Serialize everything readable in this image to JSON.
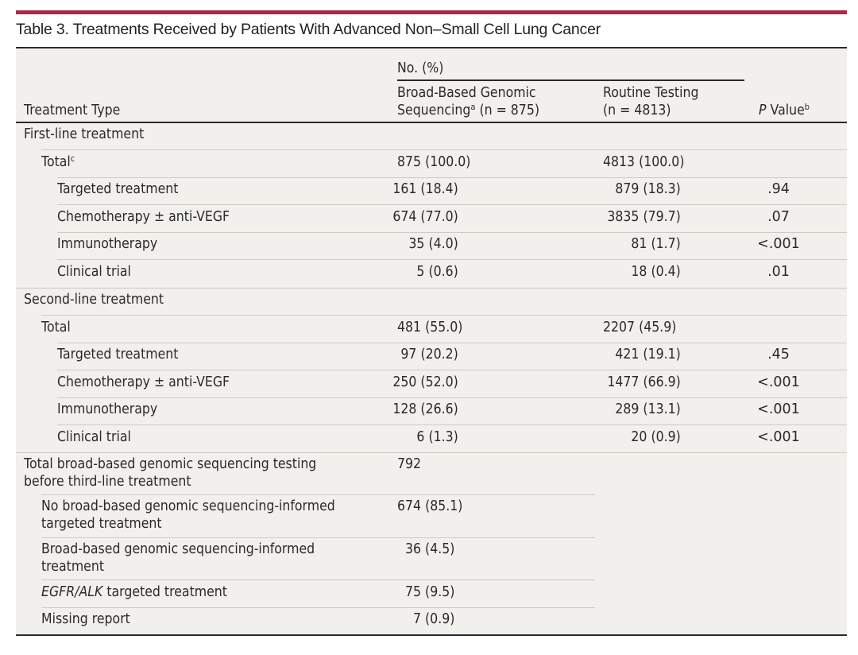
{
  "title": "Table 3. Treatments Received by Patients With Advanced Non–Small Cell Lung Cancer",
  "colors": {
    "accent_rule": "#a8294a",
    "table_bg": "#f2f0ec",
    "rule": "#2a2a2a"
  },
  "header": {
    "treatment_type": "Treatment Type",
    "group_label": "No. (%)",
    "col1_line1": "Broad-Based Genomic",
    "col1_line2": "Sequencing",
    "col1_sup": "a",
    "col1_n": " (n = 875)",
    "col2_line1": "Routine Testing",
    "col2_line2": "(n = 4813)",
    "p_italic": "P",
    "p_rest": " Value",
    "p_sup": "b"
  },
  "sections": {
    "first": {
      "label": "First-line treatment",
      "total_label": "Total",
      "total_sup": "c",
      "total_c1": "875 (100.0)",
      "total_c2": "4813 (100.0)",
      "rows": [
        {
          "label": "Targeted treatment",
          "c1": "161 (18.4)",
          "c2": "879 (18.3)",
          "p": ".94"
        },
        {
          "label": "Chemotherapy ± anti-VEGF",
          "c1": "674 (77.0)",
          "c2": "3835 (79.7)",
          "p": ".07"
        },
        {
          "label": "Immunotherapy",
          "c1": "35 (4.0)",
          "c2": "81 (1.7)",
          "p": "<.001"
        },
        {
          "label": "Clinical trial",
          "c1": "5 (0.6)",
          "c2": "18 (0.4)",
          "p": ".01"
        }
      ]
    },
    "second": {
      "label": "Second-line treatment",
      "total_label": "Total",
      "total_c1": "481 (55.0)",
      "total_c2": "2207 (45.9)",
      "rows": [
        {
          "label": "Targeted treatment",
          "c1": "97 (20.2)",
          "c2": "421 (19.1)",
          "p": ".45"
        },
        {
          "label": "Chemotherapy ± anti-VEGF",
          "c1": "250 (52.0)",
          "c2": "1477 (66.9)",
          "p": "<.001"
        },
        {
          "label": "Immunotherapy",
          "c1": "128 (26.6)",
          "c2": "289 (13.1)",
          "p": "<.001"
        },
        {
          "label": "Clinical trial",
          "c1": "6 (1.3)",
          "c2": "20 (0.9)",
          "p": "<.001"
        }
      ]
    },
    "third": {
      "label_line1": "Total broad-based genomic sequencing testing",
      "label_line2": "before third-line treatment",
      "value": "792",
      "rows": [
        {
          "label_line1": "No broad-based genomic sequencing-informed",
          "label_line2": "targeted treatment",
          "c1": "674 (85.1)"
        },
        {
          "label_line1": "Broad-based genomic sequencing-informed",
          "label_line2": "treatment",
          "c1": "36 (4.5)"
        },
        {
          "label_italic": "EGFR/ALK",
          "label_rest": " targeted treatment",
          "c1": "75 (9.5)"
        },
        {
          "label_line1": "Missing report",
          "c1": "7 (0.9)"
        }
      ]
    }
  }
}
